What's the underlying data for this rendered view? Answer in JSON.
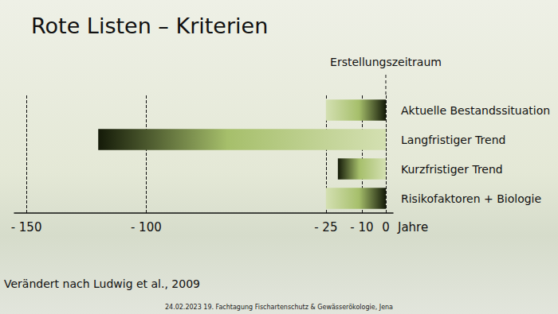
{
  "chart_data": {
    "type": "range_bar",
    "orientation": "horizontal",
    "title": "Rote Listen – Kriterien",
    "categories": [
      "Aktuelle Bestandssituation",
      "Langfristiger Trend",
      "Kurzfristiger Trend",
      "Risikofaktoren + Biologie"
    ],
    "values": [
      [
        -25,
        0
      ],
      [
        -120,
        0
      ],
      [
        -20,
        0
      ],
      [
        -25,
        0
      ]
    ],
    "color": "#a6bf6b",
    "xlabel": "Jahre",
    "xlim": [
      -155,
      3
    ],
    "xticks": [
      {
        "value": -150,
        "label": "- 150"
      },
      {
        "value": -100,
        "label": "- 100"
      },
      {
        "value": -25,
        "label": "- 25"
      },
      {
        "value": -10,
        "label": "- 10"
      },
      0
    ],
    "grid": true,
    "annotations": [
      {
        "text": "Erstellungszeitraum",
        "x": 0
      }
    ],
    "source": "Verändert nach Ludwig et al., 2009",
    "footer": "24.02.2023 19. Fachtagung Fischartenschutz & Gewässerökologie, Jena"
  }
}
